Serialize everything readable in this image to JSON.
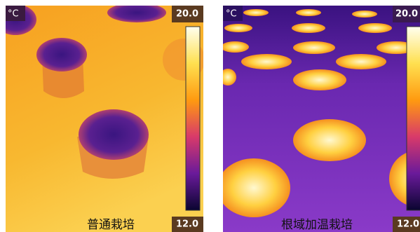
{
  "panels": [
    {
      "unit": "°C",
      "max": "20.0",
      "min": "12.0",
      "label": "普通栽培"
    },
    {
      "unit": "°C",
      "max": "20.0",
      "min": "12.0",
      "label": "根域加温栽培"
    }
  ]
}
